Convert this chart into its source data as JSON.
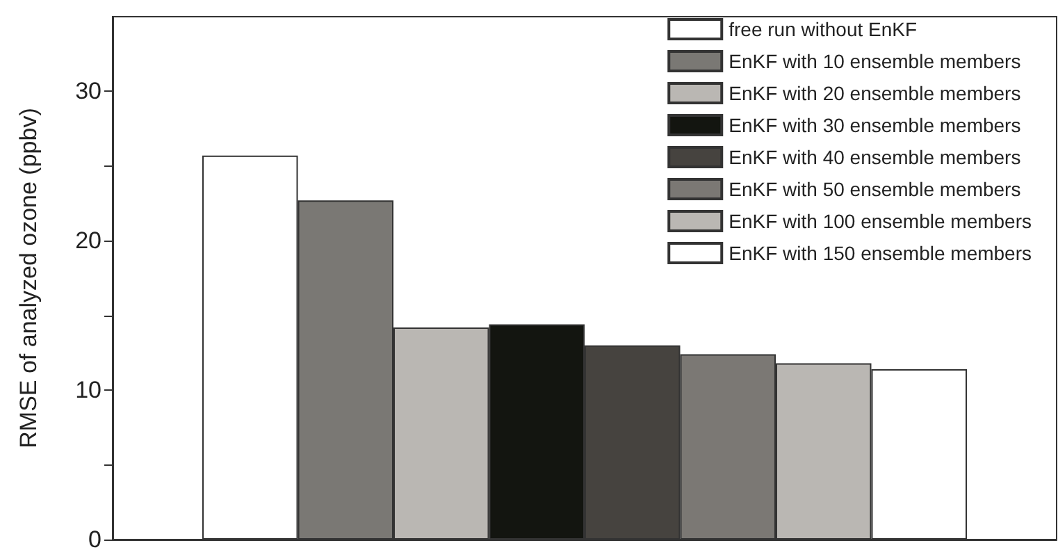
{
  "chart_data": {
    "type": "bar",
    "ylabel": "RMSE of analyzed ozone (ppbv)",
    "categories": [
      null
    ],
    "series": [
      {
        "name": "free run without EnKF",
        "color": "#ffffff",
        "values": [
          25.7
        ]
      },
      {
        "name": "EnKF with 10 ensemble members",
        "color": "#7a7874",
        "values": [
          22.7
        ]
      },
      {
        "name": "EnKF with 20 ensemble members",
        "color": "#bab7b3",
        "values": [
          14.2
        ]
      },
      {
        "name": "EnKF with 30 ensemble members",
        "color": "#131510",
        "values": [
          14.4
        ]
      },
      {
        "name": "EnKF with 40 ensemble members",
        "color": "#46433f",
        "values": [
          13.0
        ]
      },
      {
        "name": "EnKF with 50 ensemble members",
        "color": "#7b7874",
        "values": [
          12.4
        ]
      },
      {
        "name": "EnKF with 100 ensemble members",
        "color": "#bab7b3",
        "values": [
          11.8
        ]
      },
      {
        "name": "EnKF with 150 ensemble members",
        "color": "#ffffff",
        "values": [
          11.4
        ]
      }
    ],
    "ylim": [
      0,
      35
    ],
    "yticks": [
      0,
      {
        "value": 5,
        "label": null
      },
      10,
      {
        "value": 15,
        "label": null
      },
      20,
      {
        "value": 25,
        "label": null
      },
      30
    ],
    "grid": false,
    "legend": "top right"
  }
}
